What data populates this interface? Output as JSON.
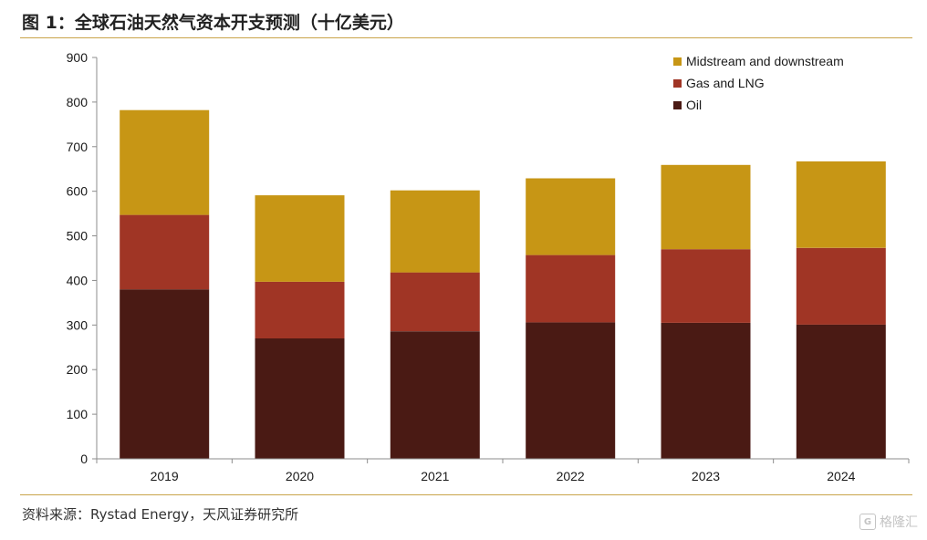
{
  "header": {
    "title": "图 1：全球石油天然气资本开支预测（十亿美元）"
  },
  "footer": {
    "source": "资料来源：Rystad Energy，天风证券研究所",
    "watermark": "格隆汇"
  },
  "chart_data": {
    "type": "bar",
    "stacked": true,
    "categories": [
      "2019",
      "2020",
      "2021",
      "2022",
      "2023",
      "2024"
    ],
    "series": [
      {
        "name": "Oil",
        "color": "#4a1a14",
        "values": [
          380,
          270,
          286,
          306,
          305,
          301
        ]
      },
      {
        "name": "Gas and LNG",
        "color": "#a03525",
        "values": [
          167,
          127,
          132,
          151,
          165,
          172
        ]
      },
      {
        "name": "Midstream and downstream",
        "color": "#c79615",
        "values": [
          235,
          194,
          184,
          172,
          189,
          194
        ]
      }
    ],
    "ylim": [
      0,
      900
    ],
    "yticks": [
      0,
      100,
      200,
      300,
      400,
      500,
      600,
      700,
      800,
      900
    ],
    "legend_position": "top-right",
    "legend_order": [
      "Midstream and downstream",
      "Gas and LNG",
      "Oil"
    ],
    "grid": false,
    "xlabel": "",
    "ylabel": ""
  }
}
